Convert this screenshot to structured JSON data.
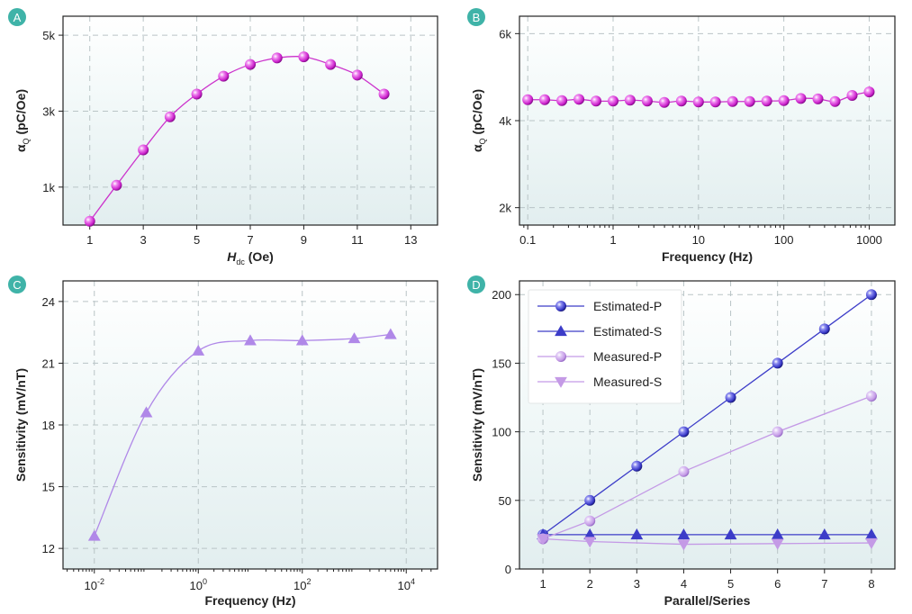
{
  "chart_data": [
    {
      "panel": "A",
      "type": "line",
      "title": "",
      "xlabel_main": "H",
      "xlabel_sub": "dc",
      "xlabel_tail": "(Oe)",
      "ylabel_main": "α",
      "ylabel_sub": "Q",
      "ylabel_tail": "(pC/Oe)",
      "xlim": [
        0,
        14
      ],
      "ylim": [
        0,
        5500
      ],
      "xticks": [
        1,
        3,
        5,
        7,
        9,
        11,
        13
      ],
      "xtick_labels": [
        "1",
        "3",
        "5",
        "7",
        "9",
        "11",
        "13"
      ],
      "yticks": [
        1000,
        3000,
        5000
      ],
      "ytick_labels": [
        "1k",
        "3k",
        "5k"
      ],
      "grid": true,
      "series": [
        {
          "color": "#cc33cc",
          "marker": "sphere",
          "x": [
            1,
            2,
            3,
            4,
            5,
            6,
            7,
            8,
            9,
            10,
            11,
            12
          ],
          "values": [
            100,
            1050,
            1980,
            2850,
            3450,
            3920,
            4230,
            4400,
            4430,
            4230,
            3950,
            3450
          ]
        }
      ]
    },
    {
      "panel": "B",
      "type": "line",
      "title": "",
      "xlabel": "Frequency (Hz)",
      "ylabel_main": "α",
      "ylabel_sub": "Q",
      "ylabel_tail": "(pC/Oe)",
      "xscale": "log",
      "xlim": [
        0.08,
        2000
      ],
      "ylim": [
        1600,
        6400
      ],
      "xticks": [
        0.1,
        1,
        10,
        100,
        1000
      ],
      "xtick_labels": [
        "0.1",
        "1",
        "10",
        "100",
        "1000"
      ],
      "yticks": [
        2000,
        4000,
        6000
      ],
      "ytick_labels": [
        "2k",
        "4k",
        "6k"
      ],
      "grid": true,
      "series": [
        {
          "color": "#cc33cc",
          "marker": "sphere",
          "x": [
            0.1,
            0.158,
            0.251,
            0.398,
            0.631,
            1.0,
            1.58,
            2.51,
            3.98,
            6.31,
            10,
            15.8,
            25.1,
            39.8,
            63.1,
            100,
            158,
            251,
            398,
            631,
            1000
          ],
          "values": [
            4480,
            4480,
            4460,
            4490,
            4450,
            4450,
            4470,
            4450,
            4420,
            4450,
            4430,
            4430,
            4440,
            4440,
            4450,
            4460,
            4510,
            4500,
            4440,
            4580,
            4660
          ]
        }
      ]
    },
    {
      "panel": "C",
      "type": "line",
      "title": "",
      "xlabel": "Frequency (Hz)",
      "ylabel": "Sensitivity (mV/nT)",
      "xscale": "log",
      "xlim": [
        0.0025,
        40000
      ],
      "ylim": [
        11,
        25
      ],
      "xticks": [
        0.01,
        1,
        100,
        10000
      ],
      "xtick_labels_base": [
        "10",
        "10",
        "10",
        "10"
      ],
      "xtick_labels_exp": [
        "-2",
        "0",
        "2",
        "4"
      ],
      "yticks": [
        12,
        15,
        18,
        21,
        24
      ],
      "ytick_labels": [
        "12",
        "15",
        "18",
        "21",
        "24"
      ],
      "grid": true,
      "series": [
        {
          "color": "#b088e8",
          "marker": "triangle-up",
          "x": [
            0.01,
            0.1,
            1,
            10,
            100,
            1000,
            5000
          ],
          "values": [
            12.6,
            18.6,
            21.6,
            22.1,
            22.1,
            22.2,
            22.4
          ]
        }
      ]
    },
    {
      "panel": "D",
      "type": "line",
      "title": "",
      "xlabel": "Parallel/Series",
      "ylabel": "Sensitivity (mV/nT)",
      "xlim": [
        0.5,
        8.5
      ],
      "ylim": [
        0,
        210
      ],
      "xticks": [
        1,
        2,
        3,
        4,
        5,
        6,
        7,
        8
      ],
      "xtick_labels": [
        "1",
        "2",
        "3",
        "4",
        "5",
        "6",
        "7",
        "8"
      ],
      "yticks": [
        0,
        50,
        100,
        150,
        200
      ],
      "ytick_labels": [
        "0",
        "50",
        "100",
        "150",
        "200"
      ],
      "grid": true,
      "legend_position": "top-left",
      "series": [
        {
          "name": "Estimated-P",
          "color": "#3c3cc8",
          "marker": "sphere",
          "x": [
            1,
            2,
            3,
            4,
            5,
            6,
            7,
            8
          ],
          "values": [
            25,
            50,
            75,
            100,
            125,
            150,
            175,
            200
          ]
        },
        {
          "name": "Estimated-S",
          "color": "#3c3cc8",
          "marker": "triangle-up",
          "x": [
            1,
            2,
            3,
            4,
            5,
            6,
            7,
            8
          ],
          "values": [
            25,
            25,
            25,
            25,
            25,
            25,
            25,
            25
          ]
        },
        {
          "name": "Measured-P",
          "color": "#c49ae6",
          "marker": "sphere",
          "x": [
            1,
            2,
            4,
            6,
            8
          ],
          "values": [
            22,
            35,
            71,
            100,
            126
          ]
        },
        {
          "name": "Measured-S",
          "color": "#c49ae6",
          "marker": "triangle-down",
          "x": [
            1,
            2,
            4,
            6,
            8
          ],
          "values": [
            22,
            20,
            18,
            18.5,
            19
          ]
        }
      ]
    }
  ]
}
